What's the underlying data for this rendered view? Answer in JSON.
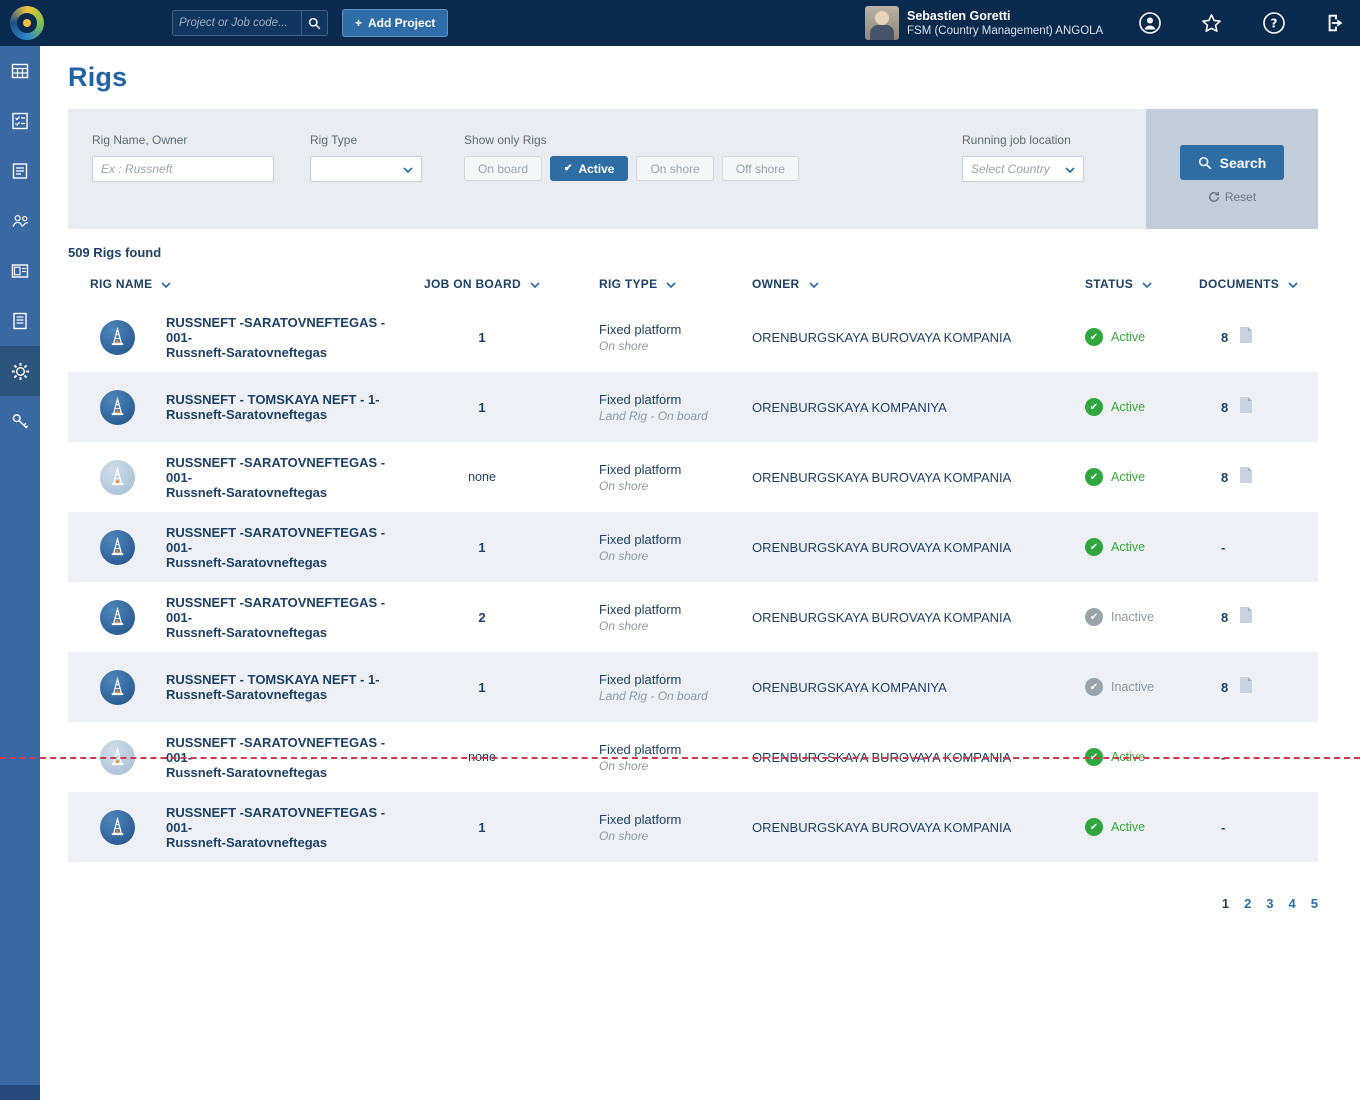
{
  "colors": {
    "accent": "#2e6da4",
    "topbar": "#0a2a4d",
    "sidebar": "#3a68a2",
    "status_active": "#2fa63e",
    "status_inactive": "#9aa4ad"
  },
  "topbar": {
    "search_placeholder": "Project or Job code...",
    "add_project_label": "Add Project",
    "user_name": "Sebastien Goretti",
    "user_role": "FSM (Country Management) ANGOLA",
    "icons": [
      "user-circle-icon",
      "star-icon",
      "help-icon",
      "logout-icon"
    ]
  },
  "sidebar": {
    "items": [
      {
        "id": "planning",
        "icon": "calendar-grid-icon",
        "active": false
      },
      {
        "id": "tasks",
        "icon": "checklist-icon",
        "active": false
      },
      {
        "id": "reports",
        "icon": "document-lines-icon",
        "active": false
      },
      {
        "id": "people",
        "icon": "people-icon",
        "active": false
      },
      {
        "id": "cards",
        "icon": "card-icon",
        "active": false
      },
      {
        "id": "notes",
        "icon": "notes-icon",
        "active": false
      },
      {
        "id": "settings",
        "icon": "gear-icon",
        "active": true
      },
      {
        "id": "access",
        "icon": "key-icon",
        "active": false
      }
    ]
  },
  "page": {
    "title": "Rigs",
    "results_count": "509 Rigs found"
  },
  "filters": {
    "rig_name_label": "Rig Name, Owner",
    "rig_name_placeholder": "Ex : Russneft",
    "rig_type_label": "Rig Type",
    "rig_type_value": "",
    "show_only_label": "Show only Rigs",
    "toggles": [
      {
        "label": "On board",
        "active": false
      },
      {
        "label": "Active",
        "active": true
      },
      {
        "label": "On shore",
        "active": false
      },
      {
        "label": "Off shore",
        "active": false
      }
    ],
    "location_label": "Running job location",
    "location_value": "Select Country",
    "search_label": "Search",
    "reset_label": "Reset"
  },
  "table": {
    "columns": [
      "RIG NAME",
      "JOB ON BOARD",
      "RIG TYPE",
      "OWNER",
      "STATUS",
      "DOCUMENTS"
    ],
    "rows": [
      {
        "name_line1": "RUSSNEFT -SARATOVNEFTEGAS - 001-",
        "name_line2": "Russneft-Saratovneftegas",
        "job_on_board": "1",
        "rig_type": "Fixed platform",
        "rig_subtype": "On shore",
        "owner": "ORENBURGSKAYA BUROVAYA KOMPANIA",
        "status": "Active",
        "documents": "8",
        "icon_muted": false
      },
      {
        "name_line1": "RUSSNEFT - TOMSKAYA NEFT - 1-",
        "name_line2": "Russneft-Saratovneftegas",
        "job_on_board": "1",
        "rig_type": "Fixed platform",
        "rig_subtype": "Land Rig - On board",
        "owner": "ORENBURGSKAYA KOMPANIYA",
        "status": "Active",
        "documents": "8",
        "icon_muted": false
      },
      {
        "name_line1": "RUSSNEFT -SARATOVNEFTEGAS - 001-",
        "name_line2": "Russneft-Saratovneftegas",
        "job_on_board": "none",
        "rig_type": "Fixed platform",
        "rig_subtype": "On shore",
        "owner": "ORENBURGSKAYA BUROVAYA KOMPANIA",
        "status": "Active",
        "documents": "8",
        "icon_muted": true
      },
      {
        "name_line1": "RUSSNEFT -SARATOVNEFTEGAS - 001-",
        "name_line2": "Russneft-Saratovneftegas",
        "job_on_board": "1",
        "rig_type": "Fixed platform",
        "rig_subtype": "On shore",
        "owner": "ORENBURGSKAYA BUROVAYA KOMPANIA",
        "status": "Active",
        "documents": "-",
        "icon_muted": false
      },
      {
        "name_line1": "RUSSNEFT -SARATOVNEFTEGAS - 001-",
        "name_line2": "Russneft-Saratovneftegas",
        "job_on_board": "2",
        "rig_type": "Fixed platform",
        "rig_subtype": "On shore",
        "owner": "ORENBURGSKAYA BUROVAYA KOMPANIA",
        "status": "Inactive",
        "documents": "8",
        "icon_muted": false
      },
      {
        "name_line1": "RUSSNEFT - TOMSKAYA NEFT - 1-",
        "name_line2": "Russneft-Saratovneftegas",
        "job_on_board": "1",
        "rig_type": "Fixed platform",
        "rig_subtype": "Land Rig - On board",
        "owner": "ORENBURGSKAYA KOMPANIYA",
        "status": "Inactive",
        "documents": "8",
        "icon_muted": false
      },
      {
        "name_line1": "RUSSNEFT -SARATOVNEFTEGAS - 001-",
        "name_line2": "Russneft-Saratovneftegas",
        "job_on_board": "none",
        "rig_type": "Fixed platform",
        "rig_subtype": "On shore",
        "owner": "ORENBURGSKAYA BUROVAYA KOMPANIA",
        "status": "Active",
        "documents": "-",
        "icon_muted": true
      },
      {
        "name_line1": "RUSSNEFT -SARATOVNEFTEGAS - 001-",
        "name_line2": "Russneft-Saratovneftegas",
        "job_on_board": "1",
        "rig_type": "Fixed platform",
        "rig_subtype": "On shore",
        "owner": "ORENBURGSKAYA BUROVAYA KOMPANIA",
        "status": "Active",
        "documents": "-",
        "icon_muted": false
      }
    ]
  },
  "pagination": {
    "pages": [
      "1",
      "2",
      "3",
      "4",
      "5"
    ],
    "current": "1"
  }
}
